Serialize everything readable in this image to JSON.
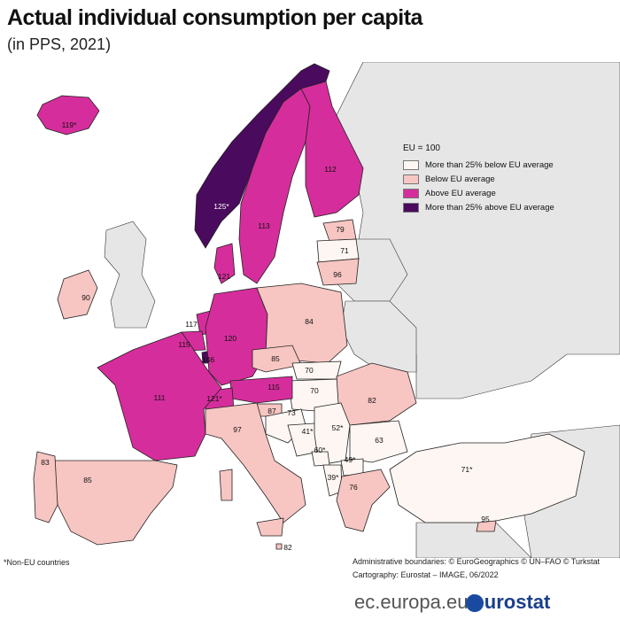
{
  "title": "Actual individual consumption per capita",
  "subtitle": "(in PPS, 2021)",
  "legend": {
    "title": "EU = 100",
    "items": [
      {
        "label": "More than 25% below EU average",
        "color": "#fdf6f2"
      },
      {
        "label": "Below EU average",
        "color": "#f7c6c2"
      },
      {
        "label": "Above EU average",
        "color": "#d62d9c"
      },
      {
        "label": "More than 25% above EU average",
        "color": "#4a0a5e"
      }
    ]
  },
  "countries": [
    {
      "name": "Iceland",
      "value": "119*",
      "category": 2
    },
    {
      "name": "Norway",
      "value": "125*",
      "category": 3
    },
    {
      "name": "Sweden",
      "value": "113",
      "category": 2
    },
    {
      "name": "Finland",
      "value": "112",
      "category": 2
    },
    {
      "name": "Estonia",
      "value": "79",
      "category": 1
    },
    {
      "name": "Latvia",
      "value": "71",
      "category": 0
    },
    {
      "name": "Lithuania",
      "value": "96",
      "category": 1
    },
    {
      "name": "Denmark",
      "value": "121",
      "category": 2
    },
    {
      "name": "Ireland",
      "value": "90",
      "category": 1
    },
    {
      "name": "Netherlands",
      "value": "117",
      "category": 2
    },
    {
      "name": "Belgium",
      "value": "115",
      "category": 2
    },
    {
      "name": "Luxembourg",
      "value": "146",
      "category": 3
    },
    {
      "name": "Germany",
      "value": "120",
      "category": 2
    },
    {
      "name": "Poland",
      "value": "84",
      "category": 1
    },
    {
      "name": "Czechia",
      "value": "85",
      "category": 1
    },
    {
      "name": "Slovakia",
      "value": "70",
      "category": 0
    },
    {
      "name": "Hungary",
      "value": "70",
      "category": 0
    },
    {
      "name": "Austria",
      "value": "115",
      "category": 2
    },
    {
      "name": "Switzerland",
      "value": "121*",
      "category": 2
    },
    {
      "name": "France",
      "value": "111",
      "category": 2
    },
    {
      "name": "Slovenia",
      "value": "87",
      "category": 1
    },
    {
      "name": "Croatia",
      "value": "73",
      "category": 0
    },
    {
      "name": "Romania",
      "value": "82",
      "category": 1
    },
    {
      "name": "Bosnia and Herzegovina",
      "value": "41*",
      "category": 0
    },
    {
      "name": "Serbia",
      "value": "52*",
      "category": 0
    },
    {
      "name": "Montenegro",
      "value": "60*",
      "category": 0
    },
    {
      "name": "Bulgaria",
      "value": "63",
      "category": 0
    },
    {
      "name": "North Macedonia",
      "value": "49*",
      "category": 0
    },
    {
      "name": "Albania",
      "value": "39*",
      "category": 0
    },
    {
      "name": "Greece",
      "value": "76",
      "category": 1
    },
    {
      "name": "Italy",
      "value": "97",
      "category": 1
    },
    {
      "name": "Spain",
      "value": "85",
      "category": 1
    },
    {
      "name": "Portugal",
      "value": "83",
      "category": 1
    },
    {
      "name": "Turkey",
      "value": "71*",
      "category": 0
    },
    {
      "name": "Cyprus",
      "value": "95",
      "category": 1
    },
    {
      "name": "Malta",
      "value": "82",
      "category": 1
    }
  ],
  "footnote": "*Non-EU countries",
  "credits": {
    "boundaries": "Administrative boundaries: © EuroGeographics © UN–FAO © Turkstat",
    "cartography": "Cartography: Eurostat – IMAGE, 06/2022"
  },
  "brand": {
    "prefix": "ec.europa.eu/",
    "name": "eurostat"
  },
  "colors": {
    "sea": "#ffffff",
    "other_land": "#e6e6e6",
    "border": "#222222"
  }
}
